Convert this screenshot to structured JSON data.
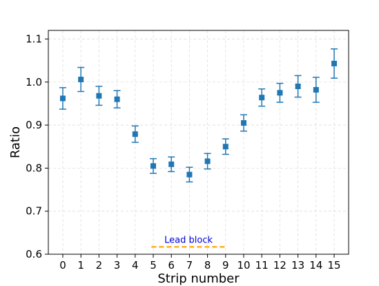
{
  "chart_data": {
    "type": "scatter",
    "xlabel": "Strip number",
    "ylabel": "Ratio",
    "xlim": [
      -0.8,
      15.8
    ],
    "ylim": [
      0.6,
      1.12
    ],
    "xticks": [
      "0",
      "1",
      "2",
      "3",
      "4",
      "5",
      "6",
      "7",
      "8",
      "9",
      "10",
      "11",
      "12",
      "13",
      "14",
      "15"
    ],
    "yticks": [
      "0.6",
      "0.7",
      "0.8",
      "0.9",
      "1.0",
      "1.1"
    ],
    "grid": true,
    "marker_color": "#1f77b4",
    "series": [
      {
        "x": [
          0,
          1,
          2,
          3,
          4,
          5,
          6,
          7,
          8,
          9,
          10,
          11,
          12,
          13,
          14,
          15
        ],
        "y": [
          0.962,
          1.006,
          0.968,
          0.96,
          0.879,
          0.805,
          0.809,
          0.785,
          0.816,
          0.85,
          0.905,
          0.964,
          0.975,
          0.99,
          0.982,
          1.043
        ],
        "yerr": [
          0.025,
          0.028,
          0.022,
          0.02,
          0.019,
          0.017,
          0.017,
          0.017,
          0.018,
          0.018,
          0.019,
          0.02,
          0.022,
          0.025,
          0.029,
          0.034
        ]
      }
    ],
    "annotations": [
      {
        "text": "Lead block",
        "text_color": "#0000dd",
        "line_color": "#ffa500",
        "line_x": [
          4.9,
          9.0
        ],
        "line_y": 0.617
      }
    ]
  }
}
